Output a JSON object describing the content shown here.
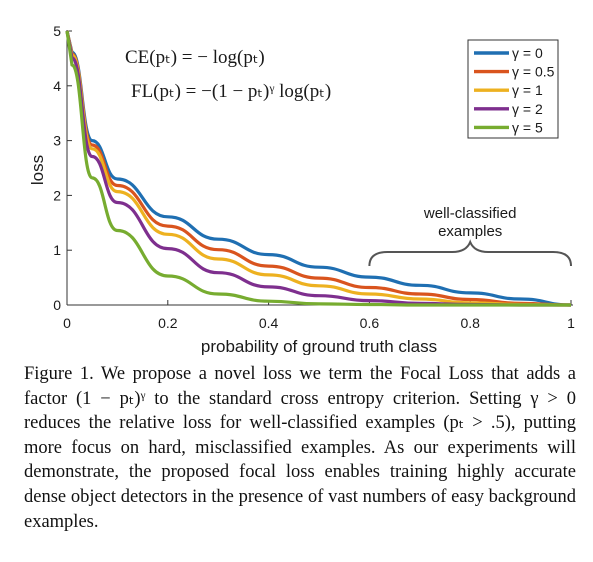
{
  "chart_data": {
    "type": "line",
    "title": "",
    "xlabel": "probability of ground truth class",
    "ylabel": "loss",
    "xlim": [
      0,
      1
    ],
    "ylim": [
      0,
      5
    ],
    "x_ticks": [
      "0",
      "0.2",
      "0.4",
      "0.6",
      "0.8",
      "1"
    ],
    "y_ticks": [
      "0",
      "1",
      "2",
      "3",
      "4",
      "5"
    ],
    "grid": false,
    "legend_position": "top-right",
    "series": [
      {
        "name": "γ = 0",
        "gamma": 0,
        "color": "#1f6fb2",
        "x": [
          0.01,
          0.05,
          0.1,
          0.2,
          0.3,
          0.4,
          0.5,
          0.6,
          0.7,
          0.8,
          0.9,
          1.0
        ],
        "y": [
          4.61,
          3.0,
          2.3,
          1.61,
          1.2,
          0.92,
          0.69,
          0.51,
          0.36,
          0.22,
          0.11,
          0.0
        ]
      },
      {
        "name": "γ = 0.5",
        "gamma": 0.5,
        "color": "#d9541e",
        "x": [
          0.01,
          0.05,
          0.1,
          0.2,
          0.3,
          0.4,
          0.5,
          0.6,
          0.7,
          0.8,
          0.9,
          1.0
        ],
        "y": [
          4.58,
          2.92,
          2.18,
          1.44,
          1.01,
          0.71,
          0.49,
          0.32,
          0.2,
          0.1,
          0.03,
          0.0
        ]
      },
      {
        "name": "γ = 1",
        "gamma": 1,
        "color": "#edb120",
        "x": [
          0.01,
          0.05,
          0.1,
          0.2,
          0.3,
          0.4,
          0.5,
          0.6,
          0.7,
          0.8,
          0.9,
          1.0
        ],
        "y": [
          4.56,
          2.85,
          2.07,
          1.29,
          0.84,
          0.55,
          0.35,
          0.2,
          0.11,
          0.04,
          0.01,
          0.0
        ]
      },
      {
        "name": "γ = 2",
        "gamma": 2,
        "color": "#7e2f8e",
        "x": [
          0.01,
          0.05,
          0.1,
          0.2,
          0.3,
          0.4,
          0.5,
          0.6,
          0.7,
          0.8,
          0.9,
          1.0
        ],
        "y": [
          4.51,
          2.71,
          1.87,
          1.03,
          0.59,
          0.33,
          0.17,
          0.08,
          0.03,
          0.01,
          0.0,
          0.0
        ]
      },
      {
        "name": "γ = 5",
        "gamma": 5,
        "color": "#77ac30",
        "x": [
          0.01,
          0.05,
          0.1,
          0.2,
          0.3,
          0.4,
          0.5,
          0.6,
          0.7,
          0.8,
          0.9,
          1.0
        ],
        "y": [
          4.38,
          2.32,
          1.36,
          0.53,
          0.2,
          0.07,
          0.02,
          0.01,
          0.0,
          0.0,
          0.0,
          0.0
        ]
      }
    ],
    "formulas": {
      "ce": "CE(pₜ) = − log(pₜ)",
      "fl": "FL(pₜ) = −(1 − pₜ)ᵞ log(pₜ)"
    },
    "annotation": {
      "line1": "well-classified",
      "line2": "examples",
      "x_range": [
        0.6,
        1.0
      ]
    }
  },
  "caption": {
    "text": "Figure 1. We propose a novel loss we term the Focal Loss that adds a factor (1 − pₜ)ᵞ to the standard cross entropy criterion. Setting γ > 0 reduces the relative loss for well-classified examples (pₜ > .5), putting more focus on hard, misclassified examples. As our experiments will demonstrate, the proposed focal loss enables training highly accurate dense object detectors in the presence of vast numbers of easy background examples."
  }
}
